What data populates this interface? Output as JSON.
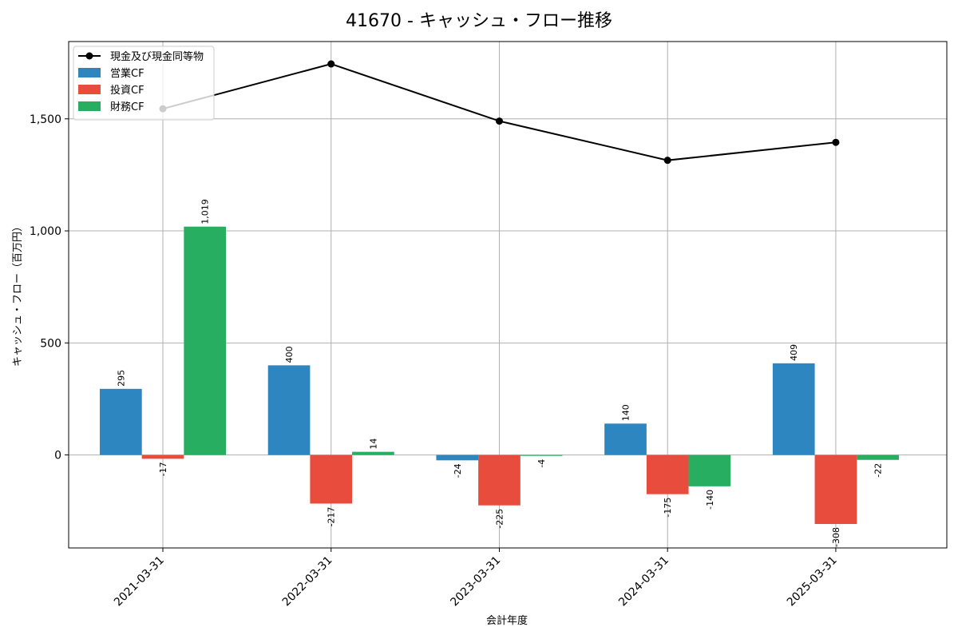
{
  "chart_data": {
    "type": "bar",
    "title": "41670 - キャッシュ・フロー推移",
    "xlabel": "会計年度",
    "ylabel": "キャッシュ・フロー（百万円）",
    "categories": [
      "2021-03-31",
      "2022-03-31",
      "2023-03-31",
      "2024-03-31",
      "2025-03-31"
    ],
    "ylim": [
      -415,
      1845
    ],
    "yticks": [
      0,
      500,
      1000,
      1500
    ],
    "ytick_labels": [
      "0",
      "500",
      "1,000",
      "1,500"
    ],
    "grid": true,
    "legend_position": "top-left",
    "series": [
      {
        "name": "営業CF",
        "kind": "bar",
        "color": "#2e86c1",
        "values": [
          295,
          400,
          -24,
          140,
          409
        ],
        "labels": [
          "295",
          "400",
          "-24",
          "140",
          "409"
        ]
      },
      {
        "name": "投資CF",
        "kind": "bar",
        "color": "#e74c3c",
        "values": [
          -17,
          -217,
          -225,
          -175,
          -308
        ],
        "labels": [
          "-17",
          "-217",
          "-225",
          "-175",
          "-308"
        ]
      },
      {
        "name": "財務CF",
        "kind": "bar",
        "color": "#27ae60",
        "values": [
          1019,
          14,
          -4,
          -140,
          -22
        ],
        "labels": [
          "1,019",
          "14",
          "-4",
          "-140",
          "-22"
        ]
      },
      {
        "name": "現金及び現金同等物",
        "kind": "line",
        "color": "#000000",
        "values": [
          1545,
          1745,
          1490,
          1315,
          1395
        ]
      }
    ]
  }
}
